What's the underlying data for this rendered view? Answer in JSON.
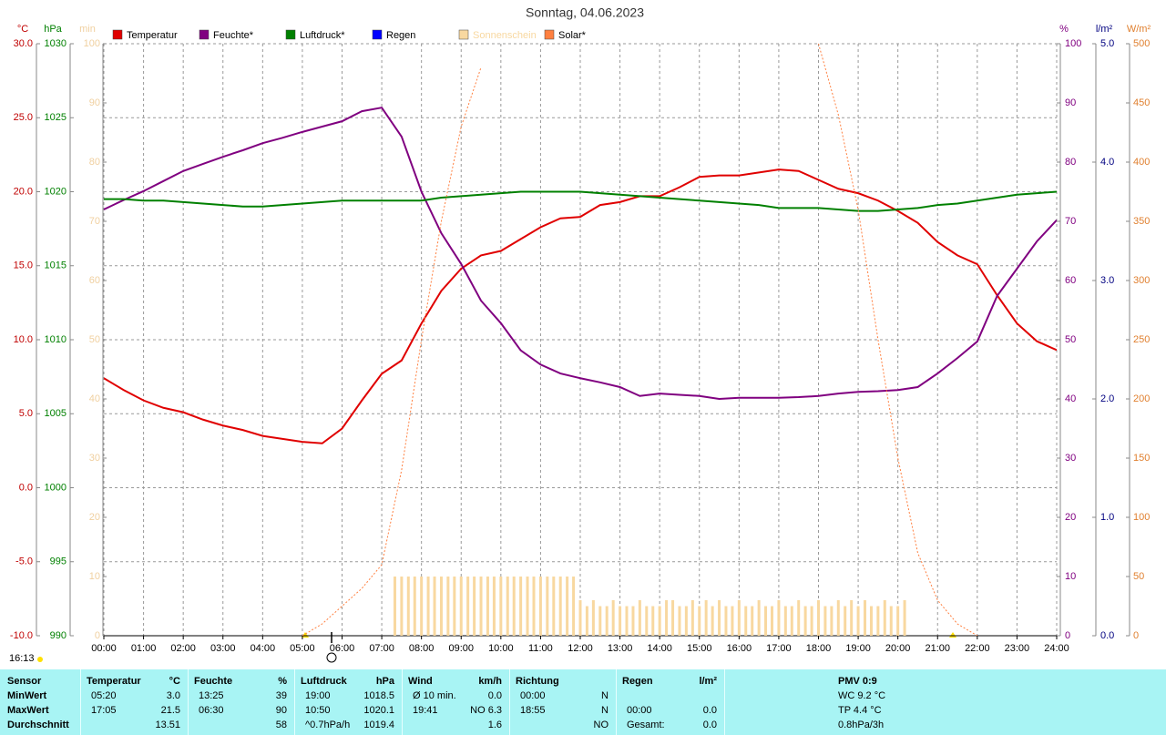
{
  "chart_data": {
    "type": "line",
    "title": "Sonntag, 04.06.2023",
    "grid": true,
    "x": [
      0,
      0.5,
      1,
      1.5,
      2,
      2.5,
      3,
      3.5,
      4,
      4.5,
      5,
      5.5,
      6,
      6.5,
      7,
      7.5,
      8,
      8.5,
      9,
      9.5,
      10,
      10.5,
      11,
      11.5,
      12,
      12.5,
      13,
      13.5,
      14,
      14.5,
      15,
      15.5,
      16,
      16.5,
      17,
      17.5,
      18,
      18.5,
      19,
      19.5,
      20,
      20.5,
      21,
      21.5,
      22,
      22.5,
      23,
      23.5,
      24
    ],
    "xlim": [
      0,
      24
    ],
    "xticks": [
      {
        "value": 0,
        "label": "00:00"
      },
      {
        "value": 1,
        "label": "01:00"
      },
      {
        "value": 2,
        "label": "02:00"
      },
      {
        "value": 3,
        "label": "03:00"
      },
      {
        "value": 4,
        "label": "04:00"
      },
      {
        "value": 5,
        "label": "05:00"
      },
      {
        "value": 6,
        "label": "06:00"
      },
      {
        "value": 7,
        "label": "07:00"
      },
      {
        "value": 8,
        "label": "08:00"
      },
      {
        "value": 9,
        "label": "09:00"
      },
      {
        "value": 10,
        "label": "10:00"
      },
      {
        "value": 11,
        "label": "11:00"
      },
      {
        "value": 12,
        "label": "12:00"
      },
      {
        "value": 13,
        "label": "13:00"
      },
      {
        "value": 14,
        "label": "14:00"
      },
      {
        "value": 15,
        "label": "15:00"
      },
      {
        "value": 16,
        "label": "16:00"
      },
      {
        "value": 17,
        "label": "17:00"
      },
      {
        "value": 18,
        "label": "18:00"
      },
      {
        "value": 19,
        "label": "19:00"
      },
      {
        "value": 20,
        "label": "20:00"
      },
      {
        "value": 21,
        "label": "21:00"
      },
      {
        "value": 22,
        "label": "22:00"
      },
      {
        "value": 23,
        "label": "23:00"
      },
      {
        "value": 24,
        "label": "24:00"
      }
    ],
    "axes": [
      {
        "unit": "°C",
        "color": "#c00000",
        "lim": [
          -10,
          30
        ],
        "ticks": [
          {
            "value": -10,
            "label": "-10.0"
          },
          {
            "value": -5,
            "label": "-5.0"
          },
          {
            "value": 0,
            "label": "0.0"
          },
          {
            "value": 5,
            "label": "5.0"
          },
          {
            "value": 10,
            "label": "10.0"
          },
          {
            "value": 15,
            "label": "15.0"
          },
          {
            "value": 20,
            "label": "20.0"
          },
          {
            "value": 25,
            "label": "25.0"
          },
          {
            "value": 30,
            "label": "30.0"
          }
        ]
      },
      {
        "unit": "hPa",
        "color": "#008000",
        "lim": [
          990,
          1030
        ],
        "ticks": [
          990,
          995,
          1000,
          1005,
          1010,
          1015,
          1020,
          1025,
          1030
        ]
      },
      {
        "unit": "min",
        "color": "#f0d0a0",
        "lim": [
          0,
          100
        ],
        "ticks": [
          0,
          10,
          20,
          30,
          40,
          50,
          60,
          70,
          80,
          90,
          100
        ]
      },
      {
        "unit": "%",
        "color": "#800080",
        "lim": [
          0,
          100
        ],
        "ticks": [
          0,
          10,
          20,
          30,
          40,
          50,
          60,
          70,
          80,
          90,
          100
        ]
      },
      {
        "unit": "l/m²",
        "color": "#000080",
        "lim": [
          0,
          5
        ],
        "ticks": [
          {
            "value": 0,
            "label": "0.0"
          },
          {
            "value": 1,
            "label": "1.0"
          },
          {
            "value": 2,
            "label": "2.0"
          },
          {
            "value": 3,
            "label": "3.0"
          },
          {
            "value": 4,
            "label": "4.0"
          },
          {
            "value": 5,
            "label": "5.0"
          }
        ]
      },
      {
        "unit": "W/m²",
        "color": "#e08030",
        "lim": [
          0,
          500
        ],
        "ticks": [
          0,
          50,
          100,
          150,
          200,
          250,
          300,
          350,
          400,
          450,
          500
        ]
      }
    ],
    "series": [
      {
        "name": "Temperatur",
        "color": "#e00000",
        "axis": "°C",
        "values": [
          7.4,
          6.6,
          5.9,
          5.4,
          5.1,
          4.6,
          4.2,
          3.9,
          3.5,
          3.3,
          3.1,
          3.0,
          4.0,
          5.9,
          7.7,
          8.6,
          11.1,
          13.3,
          14.8,
          15.7,
          16.0,
          16.8,
          17.6,
          18.2,
          18.3,
          19.1,
          19.3,
          19.7,
          19.7,
          20.3,
          21.0,
          21.1,
          21.1,
          21.3,
          21.5,
          21.4,
          20.8,
          20.2,
          19.9,
          19.4,
          18.7,
          17.9,
          16.6,
          15.7,
          15.1,
          13.0,
          11.1,
          9.9,
          9.3
        ]
      },
      {
        "name": "Feuchte*",
        "color": "#800080",
        "axis": "%",
        "values": [
          72,
          73.6,
          75.1,
          76.8,
          78.5,
          79.7,
          80.9,
          82,
          83.2,
          84.1,
          85.1,
          86,
          86.9,
          88.6,
          89.2,
          84.3,
          75,
          68,
          62.8,
          56.6,
          52.8,
          48.2,
          45.8,
          44.3,
          43.5,
          42.8,
          42,
          40.5,
          40.9,
          40.7,
          40.5,
          40,
          40.2,
          40.2,
          40.2,
          40.3,
          40.5,
          40.9,
          41.2,
          41.3,
          41.5,
          42,
          44.3,
          46.9,
          49.7,
          57.4,
          62,
          66.6,
          70.2
        ]
      },
      {
        "name": "Luftdruck*",
        "color": "#008000",
        "axis": "hPa",
        "values": [
          1019.5,
          1019.5,
          1019.4,
          1019.4,
          1019.3,
          1019.2,
          1019.1,
          1019.0,
          1019.0,
          1019.1,
          1019.2,
          1019.3,
          1019.4,
          1019.4,
          1019.4,
          1019.4,
          1019.4,
          1019.6,
          1019.7,
          1019.8,
          1019.9,
          1020.0,
          1020.0,
          1020.0,
          1020.0,
          1019.9,
          1019.8,
          1019.7,
          1019.6,
          1019.5,
          1019.4,
          1019.3,
          1019.2,
          1019.1,
          1018.9,
          1018.9,
          1018.9,
          1018.8,
          1018.7,
          1018.7,
          1018.8,
          1018.9,
          1019.1,
          1019.2,
          1019.4,
          1019.6,
          1019.8,
          1019.9,
          1020.0
        ]
      },
      {
        "name": "Regen",
        "color": "#0000ff",
        "axis": "l/m²"
      },
      {
        "name": "Sonnenschein",
        "color": "#f8d8a0",
        "axis": "min",
        "kind": "bar",
        "x": [
          7.33,
          7.5,
          7.67,
          7.83,
          8,
          8.17,
          8.33,
          8.5,
          8.67,
          8.83,
          9,
          9.17,
          9.33,
          9.5,
          9.67,
          9.83,
          10,
          10.17,
          10.33,
          10.5,
          10.67,
          10.83,
          11,
          11.17,
          11.33,
          11.5,
          11.67,
          11.83,
          12,
          12.17,
          12.33,
          12.5,
          12.67,
          12.83,
          13,
          13.17,
          13.33,
          13.5,
          13.67,
          13.83,
          14,
          14.17,
          14.33,
          14.5,
          14.67,
          14.83,
          15,
          15.17,
          15.33,
          15.5,
          15.67,
          15.83,
          16,
          16.17,
          16.33,
          16.5,
          16.67,
          16.83,
          17,
          17.17,
          17.33,
          17.5,
          17.67,
          17.83,
          18,
          18.17,
          18.33,
          18.5,
          18.67,
          18.83,
          19,
          19.17,
          19.33,
          19.5,
          19.67,
          19.83,
          20,
          20.17
        ],
        "values": [
          10,
          10,
          10,
          10,
          10,
          10,
          10,
          10,
          10,
          10,
          10,
          10,
          10,
          10,
          10,
          10,
          10,
          10,
          10,
          10,
          10,
          10,
          10,
          10,
          10,
          10,
          10,
          10,
          6,
          5,
          6,
          5,
          5,
          6,
          5,
          5,
          5,
          6,
          5,
          5,
          5,
          6,
          6,
          5,
          5,
          6,
          5,
          6,
          5,
          6,
          5,
          5,
          6,
          5,
          5,
          6,
          5,
          5,
          6,
          5,
          5,
          6,
          5,
          5,
          6,
          5,
          5,
          6,
          5,
          6,
          5,
          6,
          5,
          5,
          6,
          5,
          5,
          6
        ]
      },
      {
        "name": "Solar*",
        "color": "#ff8040",
        "axis": "W/m²",
        "dashed": true,
        "values": [
          null,
          null,
          null,
          null,
          null,
          null,
          null,
          null,
          null,
          null,
          0,
          10,
          25,
          40,
          60,
          140,
          250,
          350,
          430,
          480,
          null,
          null,
          null,
          null,
          null,
          null,
          null,
          null,
          null,
          null,
          null,
          null,
          null,
          null,
          null,
          null,
          500,
          440,
          360,
          250,
          150,
          70,
          30,
          10,
          0,
          null,
          null,
          null,
          null
        ]
      }
    ]
  },
  "sunshine_time": "16:13",
  "table": {
    "header": "Sensor",
    "pmv": "PMV 0:9",
    "columns": [
      {
        "header": "Temperatur",
        "unit": "°C"
      },
      {
        "header": "Feuchte",
        "unit": "%"
      },
      {
        "header": "Luftdruck",
        "unit": "hPa"
      },
      {
        "header": "Wind",
        "unit": "km/h"
      },
      {
        "header": "Richtung"
      },
      {
        "header": "Regen",
        "unit": "l/m²"
      }
    ],
    "rows": [
      {
        "label": "MinWert",
        "cells": [
          {
            "left": "05:20",
            "right": "3.0"
          },
          {
            "left": "13:25",
            "right": "39"
          },
          {
            "left": "19:00",
            "right": "1018.5"
          },
          {
            "left": "Ø 10 min.",
            "right": "0.0"
          },
          {
            "left": "00:00",
            "right": "N"
          },
          {}
        ],
        "pmv": "WC 9.2 °C"
      },
      {
        "label": "MaxWert",
        "cells": [
          {
            "left": "17:05",
            "right": "21.5"
          },
          {
            "left": "06:30",
            "right": "90"
          },
          {
            "left": "10:50",
            "right": "1020.1"
          },
          {
            "left": "19:41",
            "right": "NO 6.3"
          },
          {
            "left": "18:55",
            "right": "N"
          },
          {
            "left": "00:00",
            "right": "0.0"
          }
        ],
        "pmv": "TP 4.4 °C"
      },
      {
        "label": "Durchschnitt",
        "cells": [
          {
            "right": "13.51"
          },
          {
            "right": "58"
          },
          {
            "left": "^0.7hPa/h",
            "right": "1019.4"
          },
          {
            "right": "1.6"
          },
          {
            "right": "NO"
          },
          {
            "left": "Gesamt:",
            "right": "0.0"
          }
        ],
        "pmv": "0.8hPa/3h"
      }
    ]
  }
}
